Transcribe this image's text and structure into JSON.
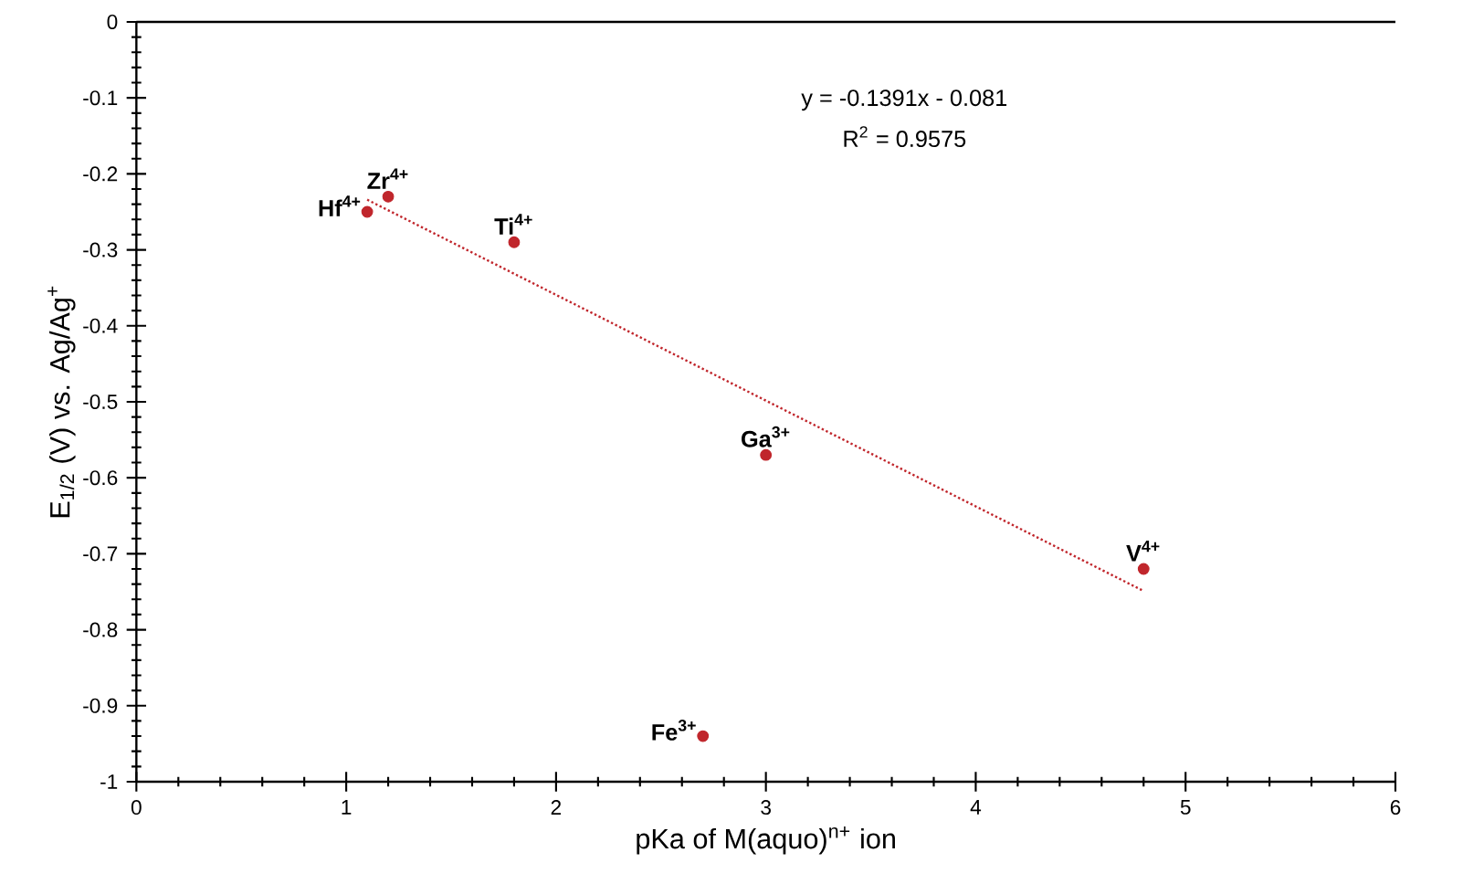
{
  "chart_data": {
    "type": "scatter",
    "xlabel": "pKa of M(aquo)$^{n+}$ ion",
    "ylabel": "E$_{1/2}$ (V) vs. Ag/Ag$^{+}$",
    "xlim": [
      0,
      6
    ],
    "ylim": [
      -1,
      0
    ],
    "xticks": [
      0,
      1,
      2,
      3,
      4,
      5,
      6
    ],
    "yticks": [
      -1,
      -0.9,
      -0.8,
      -0.7,
      -0.6,
      -0.5,
      -0.4,
      -0.3,
      -0.2,
      -0.1,
      0
    ],
    "series": [
      {
        "marker": "circle",
        "color": "#c0262c",
        "x": [
          1.1,
          1.2,
          1.8,
          3,
          4.8,
          2.7
        ],
        "values": [
          -0.25,
          -0.23,
          -0.29,
          -0.57,
          -0.72,
          -0.94
        ]
      },
      {
        "type": "line",
        "color": "#c0262c",
        "line_style": "dotted",
        "x": [
          1.1,
          4.8
        ],
        "values": [
          -0.234,
          -0.749
        ]
      }
    ],
    "annotations": [
      {
        "text": "Hf$^{4+}$",
        "x": 1.1,
        "y": -0.25
      },
      {
        "text": "Zr$^{4+}$",
        "x": 1.2,
        "y": -0.23
      },
      {
        "text": "Ti$^{4+}$",
        "x": 1.8,
        "y": -0.29
      },
      {
        "text": "Ga$^{3+}$",
        "x": 3,
        "y": -0.57
      },
      {
        "text": "V$^{4+}$",
        "x": 4.8,
        "y": -0.72
      },
      {
        "text": "Fe$^{3+}$",
        "x": 2.7,
        "y": -0.94
      },
      "y = -0.1391x - 0.081",
      "R$^{2}$ = 0.9575"
    ]
  }
}
